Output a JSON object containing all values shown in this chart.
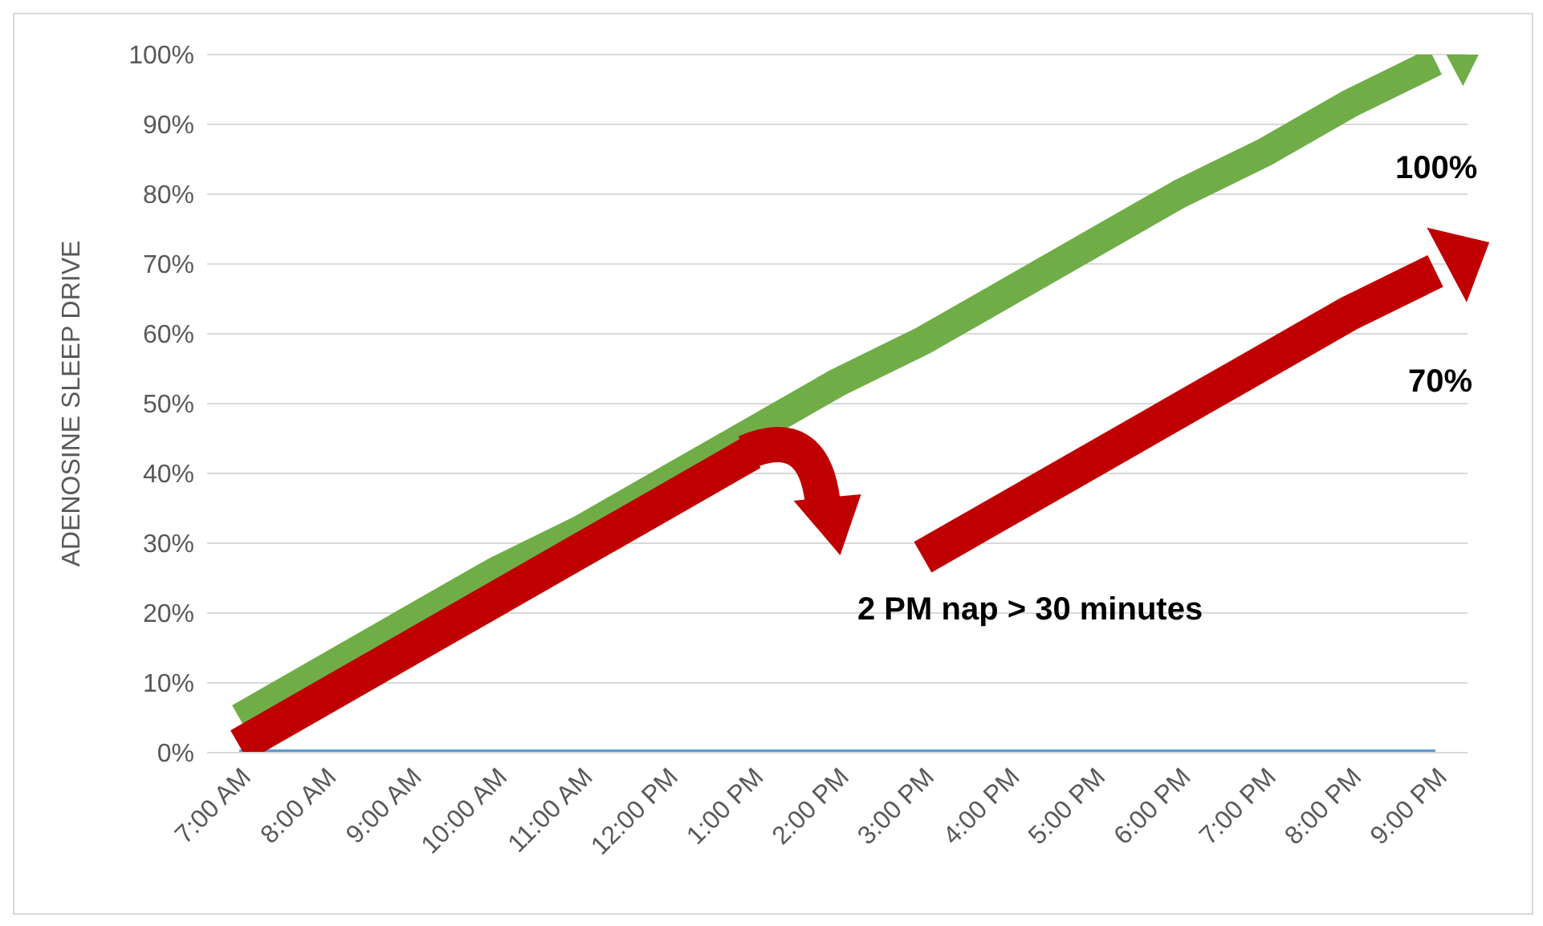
{
  "chart_data": {
    "type": "line",
    "ylabel": "ADENOSINE SLEEP DRIVE",
    "categories": [
      "7:00 AM",
      "8:00 AM",
      "9:00 AM",
      "10:00 AM",
      "11:00 AM",
      "12:00 PM",
      "1:00 PM",
      "2:00 PM",
      "3:00 PM",
      "4:00 PM",
      "5:00 PM",
      "6:00 PM",
      "7:00 PM",
      "8:00 PM",
      "9:00 PM"
    ],
    "series": [
      {
        "color": "#5b9bd5",
        "values": [
          0,
          0,
          0,
          0,
          0,
          0,
          0,
          0,
          0,
          0,
          0,
          0,
          0,
          0,
          0
        ]
      },
      {
        "color": "#70ad47",
        "values": [
          5,
          12,
          19,
          26,
          32,
          39,
          46,
          53,
          59,
          66,
          73,
          80,
          86,
          93,
          99
        ]
      },
      {
        "color": "#c00000",
        "values": [
          1,
          8,
          15,
          22,
          29,
          36,
          43,
          null,
          28,
          35,
          42,
          49,
          56,
          63,
          69
        ]
      }
    ],
    "ylim": [
      0,
      100
    ],
    "yticks": [
      {
        "value": 0,
        "label": "0%"
      },
      {
        "value": 10,
        "label": "10%"
      },
      {
        "value": 20,
        "label": "20%"
      },
      {
        "value": 30,
        "label": "30%"
      },
      {
        "value": 40,
        "label": "40%"
      },
      {
        "value": 50,
        "label": "50%"
      },
      {
        "value": 60,
        "label": "60%"
      },
      {
        "value": 70,
        "label": "70%"
      },
      {
        "value": 80,
        "label": "80%"
      },
      {
        "value": 90,
        "label": "90%"
      },
      {
        "value": 100,
        "label": "100%"
      }
    ],
    "grid": "y",
    "marker": "none",
    "annotations": [
      "100%",
      "70%",
      "2 PM nap > 30 minutes"
    ]
  }
}
